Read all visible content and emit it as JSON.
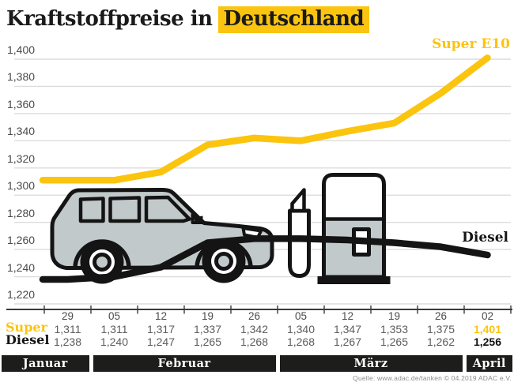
{
  "title": {
    "prefix": "Kraftstoffpreise in",
    "highlight": "Deutschland"
  },
  "source": "Quelle: www.adac.de/tanken   © 04.2019  ADAC e.V.",
  "colors": {
    "accent_yellow": "#FBC40E",
    "diesel_black": "#141414",
    "grid": "#DCDCDC",
    "axis": "#3A3A39",
    "month_bar": "#1D1D1B",
    "illustration_gray": "#C2C9CB"
  },
  "chart_data": {
    "type": "line",
    "title": "Kraftstoffpreise in Deutschland",
    "grid": "horizontal",
    "legend_position": "inline-right",
    "ylim": [
      1220,
      1400
    ],
    "y_tick_labels": [
      "1,400",
      "1,380",
      "1,360",
      "1,340",
      "1,320",
      "1,300",
      "1,280",
      "1,260",
      "1,240",
      "1,220"
    ],
    "y_tick_values": [
      1400,
      1380,
      1360,
      1340,
      1320,
      1300,
      1280,
      1260,
      1240,
      1220
    ],
    "x_tick_labels": [
      "29",
      "05",
      "12",
      "19",
      "26",
      "05",
      "12",
      "19",
      "26",
      "02"
    ],
    "months": [
      {
        "label": "Januar",
        "columns": 1
      },
      {
        "label": "Februar",
        "columns": 4
      },
      {
        "label": "März",
        "columns": 4
      },
      {
        "label": "April",
        "columns": 1
      }
    ],
    "series": [
      {
        "name": "Super E10",
        "row_label": "Super",
        "color": "#FBC40E",
        "values": [
          1311,
          1311,
          1317,
          1337,
          1342,
          1340,
          1347,
          1353,
          1375,
          1401
        ],
        "value_labels": [
          "1,311",
          "1,311",
          "1,317",
          "1,337",
          "1,342",
          "1,340",
          "1,347",
          "1,353",
          "1,375",
          "1,401"
        ]
      },
      {
        "name": "Diesel",
        "row_label": "Diesel",
        "color": "#141414",
        "values": [
          1238,
          1240,
          1247,
          1265,
          1268,
          1268,
          1267,
          1265,
          1262,
          1256
        ],
        "value_labels": [
          "1,238",
          "1,240",
          "1,247",
          "1,265",
          "1,268",
          "1,268",
          "1,267",
          "1,265",
          "1,262",
          "1,256"
        ]
      }
    ]
  }
}
